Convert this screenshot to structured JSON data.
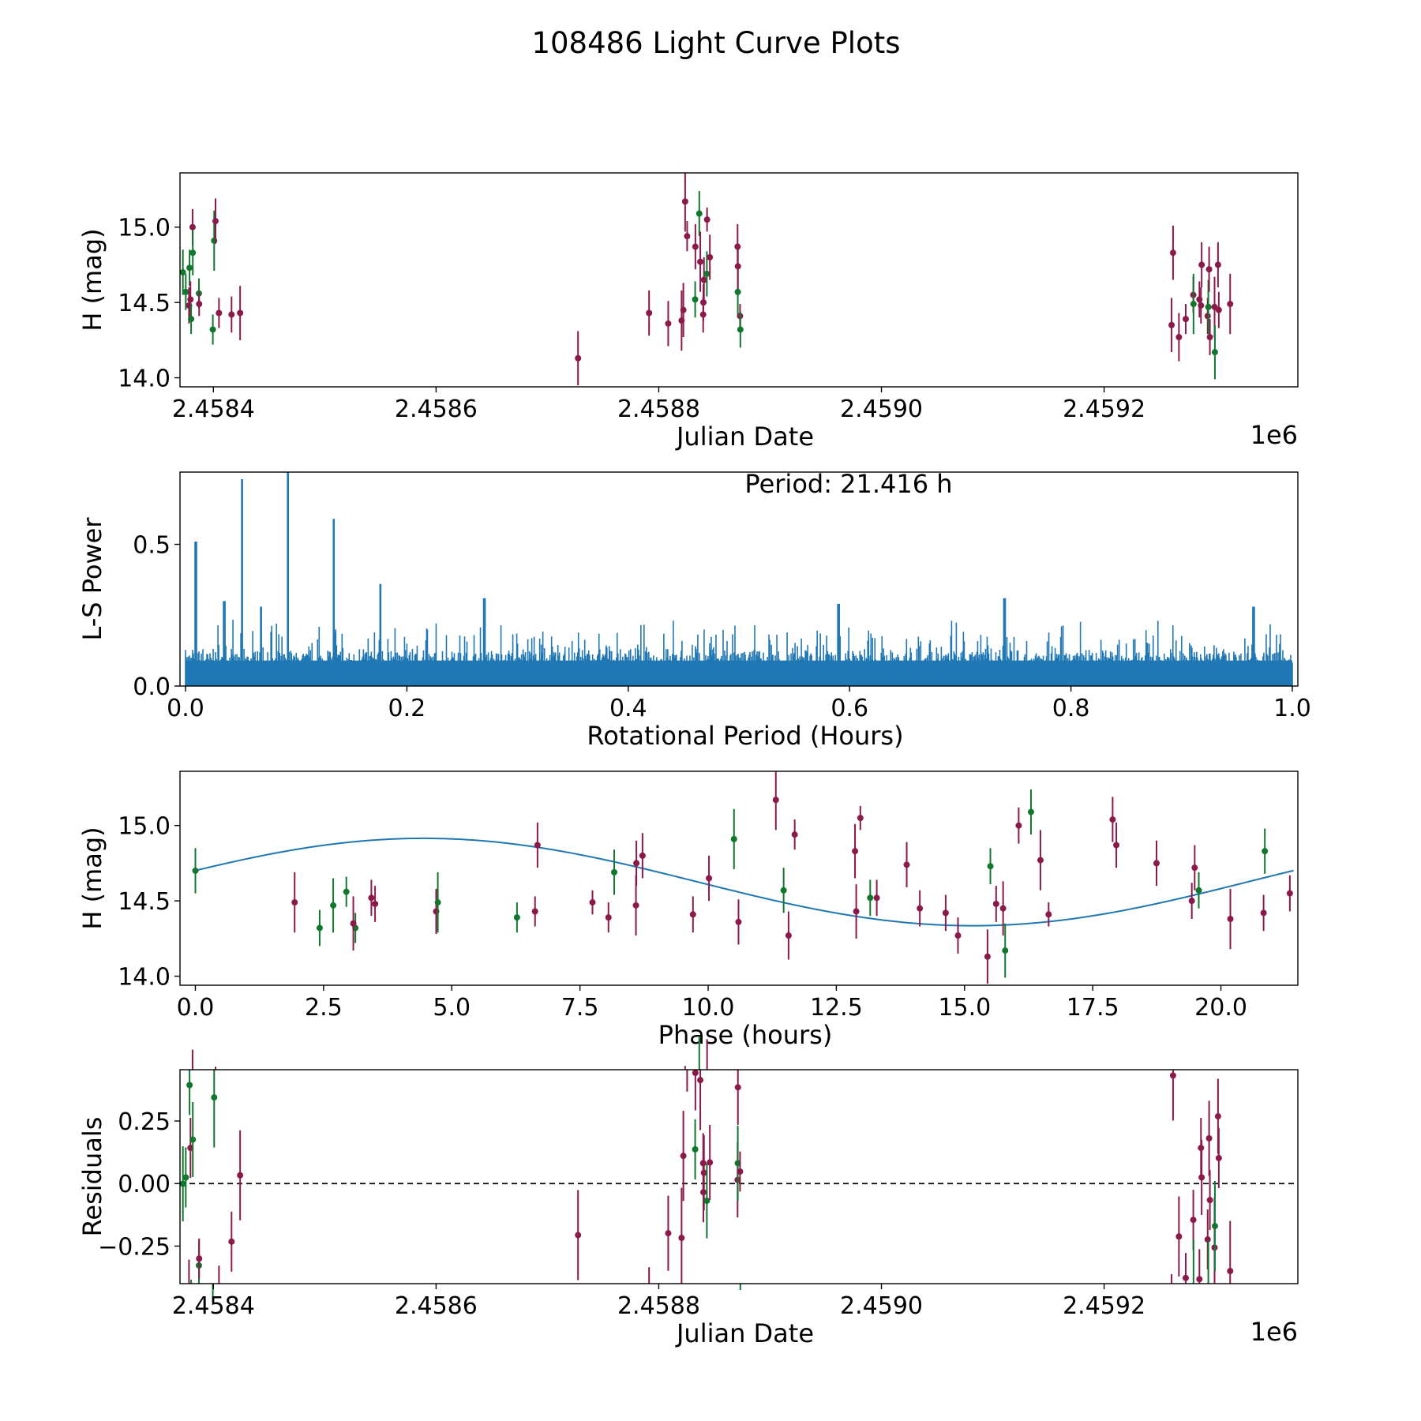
{
  "chart_data": {
    "title": "108486 Light Curve Plots",
    "colors": {
      "purple": "#8b1a4a",
      "green": "#11772f",
      "blue": "#1f77b4"
    },
    "observations": [
      [
        2458372.6,
        14.7,
        0.15,
        "g"
      ],
      [
        2458375.2,
        14.57,
        0.12,
        "g"
      ],
      [
        2458378.1,
        14.48,
        0.12,
        "p"
      ],
      [
        2458378.6,
        14.73,
        0.12,
        "g"
      ],
      [
        2458379.4,
        14.52,
        0.12,
        "p"
      ],
      [
        2458380.0,
        14.39,
        0.1,
        "g"
      ],
      [
        2458381.3,
        15.0,
        0.12,
        "p"
      ],
      [
        2458381.5,
        14.83,
        0.15,
        "g"
      ],
      [
        2458387.0,
        14.56,
        0.1,
        "g"
      ],
      [
        2458387.2,
        14.49,
        0.08,
        "p"
      ],
      [
        2458399.5,
        14.32,
        0.1,
        "g"
      ],
      [
        2458400.7,
        14.91,
        0.2,
        "g"
      ],
      [
        2458401.9,
        15.04,
        0.15,
        "p"
      ],
      [
        2458405.0,
        14.43,
        0.1,
        "p"
      ],
      [
        2458416.3,
        14.42,
        0.12,
        "p"
      ],
      [
        2458424.0,
        14.43,
        0.18,
        "p"
      ],
      [
        2458727.5,
        14.13,
        0.18,
        "p"
      ],
      [
        2458791.3,
        14.43,
        0.15,
        "p"
      ],
      [
        2458808.5,
        14.36,
        0.15,
        "p"
      ],
      [
        2458820.5,
        14.38,
        0.2,
        "p"
      ],
      [
        2458822.1,
        14.45,
        0.18,
        "p"
      ],
      [
        2458823.7,
        15.17,
        0.2,
        "p"
      ],
      [
        2458825.5,
        14.94,
        0.1,
        "p"
      ],
      [
        2458832.7,
        14.52,
        0.12,
        "g"
      ],
      [
        2458832.9,
        14.87,
        0.15,
        "p"
      ],
      [
        2458836.4,
        15.09,
        0.15,
        "g"
      ],
      [
        2458837.3,
        14.77,
        0.2,
        "p"
      ],
      [
        2458839.9,
        14.42,
        0.12,
        "p"
      ],
      [
        2458840.1,
        14.5,
        0.12,
        "p"
      ],
      [
        2458840.6,
        14.65,
        0.15,
        "p"
      ],
      [
        2458843.2,
        14.69,
        0.15,
        "g"
      ],
      [
        2458843.4,
        15.05,
        0.08,
        "p"
      ],
      [
        2458845.9,
        14.8,
        0.15,
        "p"
      ],
      [
        2458870.8,
        14.87,
        0.15,
        "p"
      ],
      [
        2458871.0,
        14.57,
        0.15,
        "g"
      ],
      [
        2458871.1,
        14.74,
        0.15,
        "p"
      ],
      [
        2458873.0,
        14.41,
        0.08,
        "p"
      ],
      [
        2458873.3,
        14.32,
        0.12,
        "g"
      ],
      [
        2459260.6,
        14.35,
        0.18,
        "p"
      ],
      [
        2459261.9,
        14.83,
        0.18,
        "p"
      ],
      [
        2459267.2,
        14.27,
        0.16,
        "p"
      ],
      [
        2459273.3,
        14.39,
        0.1,
        "p"
      ],
      [
        2459280.1,
        14.55,
        0.12,
        "p"
      ],
      [
        2459280.3,
        14.49,
        0.2,
        "g"
      ],
      [
        2459285.6,
        14.52,
        0.12,
        "p"
      ],
      [
        2459287.0,
        14.48,
        0.12,
        "p"
      ],
      [
        2459287.6,
        14.75,
        0.15,
        "p"
      ],
      [
        2459293.0,
        14.41,
        0.12,
        "p"
      ],
      [
        2459293.6,
        14.47,
        0.18,
        "g"
      ],
      [
        2459294.3,
        14.72,
        0.15,
        "p"
      ],
      [
        2459295.0,
        14.27,
        0.12,
        "p"
      ],
      [
        2459299.2,
        14.47,
        0.2,
        "p"
      ],
      [
        2459299.5,
        14.17,
        0.18,
        "g"
      ],
      [
        2459302.3,
        14.75,
        0.15,
        "p"
      ],
      [
        2459303.0,
        14.45,
        0.12,
        "p"
      ],
      [
        2459313.2,
        14.49,
        0.2,
        "p"
      ]
    ],
    "panels": [
      {
        "type": "scatter",
        "xlabel": "Julian Date",
        "ylabel": "H (mag)",
        "offset_label": "1e6",
        "xlim": [
          2458370,
          2459374
        ],
        "ylim": [
          13.94,
          15.36
        ],
        "xticks": [
          2458400,
          2458600,
          2458800,
          2459000,
          2459200
        ],
        "xtick_labels": [
          "2.4584",
          "2.4586",
          "2.4588",
          "2.4590",
          "2.4592"
        ],
        "yticks": [
          14.0,
          14.5,
          15.0
        ],
        "ytick_labels": [
          "14.0",
          "14.5",
          "15.0"
        ]
      },
      {
        "type": "line",
        "xlabel": "Rotational Period (Hours)",
        "ylabel": "L-S Power",
        "annotation": "Period: 21.416 h",
        "xlim": [
          -0.005,
          1.005
        ],
        "ylim": [
          0.0,
          0.755
        ],
        "xticks": [
          0.0,
          0.2,
          0.4,
          0.6,
          0.8,
          1.0
        ],
        "xtick_labels": [
          "0.0",
          "0.2",
          "0.4",
          "0.6",
          "0.8",
          "1.0"
        ],
        "yticks": [
          0.0,
          0.5
        ],
        "ytick_labels": [
          "0.0",
          "0.5"
        ],
        "peaks": [
          [
            0.0093,
            0.51
          ],
          [
            0.051,
            0.73
          ],
          [
            0.0925,
            0.76
          ],
          [
            0.134,
            0.59
          ],
          [
            0.176,
            0.36
          ],
          [
            0.035,
            0.3
          ],
          [
            0.068,
            0.28
          ],
          [
            0.27,
            0.31
          ],
          [
            0.59,
            0.29
          ],
          [
            0.74,
            0.31
          ],
          [
            0.965,
            0.28
          ]
        ],
        "noise_floor": 0.12,
        "noise_top": 0.24
      },
      {
        "type": "scatter",
        "xlabel": "Phase (hours)",
        "ylabel": "H (mag)",
        "xlim": [
          -0.3,
          21.5
        ],
        "ylim": [
          13.94,
          15.36
        ],
        "xticks": [
          0.0,
          2.5,
          5.0,
          7.5,
          10.0,
          12.5,
          15.0,
          17.5,
          20.0
        ],
        "xtick_labels": [
          "0.0",
          "2.5",
          "5.0",
          "7.5",
          "10.0",
          "12.5",
          "15.0",
          "17.5",
          "20.0"
        ],
        "yticks": [
          14.0,
          14.5,
          15.0
        ],
        "ytick_labels": [
          "14.0",
          "14.5",
          "15.0"
        ],
        "model": {
          "mean": 14.625,
          "amplitude": 0.29,
          "period_h": 21.416,
          "phase_of_max": 4.45
        }
      },
      {
        "type": "scatter",
        "xlabel": "Julian Date",
        "ylabel": "Residuals",
        "offset_label": "1e6",
        "xlim": [
          2458370,
          2459374
        ],
        "ylim": [
          -0.4,
          0.455
        ],
        "xticks": [
          2458400,
          2458600,
          2458800,
          2459000,
          2459200
        ],
        "xtick_labels": [
          "2.4584",
          "2.4586",
          "2.4588",
          "2.4590",
          "2.4592"
        ],
        "yticks": [
          -0.25,
          0.0,
          0.25
        ],
        "ytick_labels": [
          "−0.25",
          "0.00",
          "0.25"
        ],
        "zero_line": 0.0
      }
    ]
  }
}
